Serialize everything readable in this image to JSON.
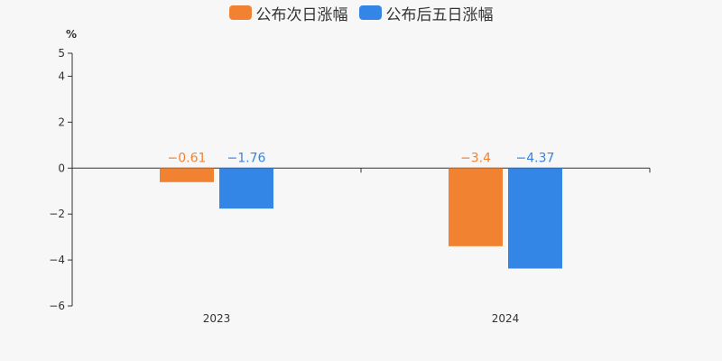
{
  "chart_data": {
    "type": "bar",
    "categories": [
      "2023",
      "2024"
    ],
    "series": [
      {
        "name": "公布次日涨幅",
        "values": [
          -0.61,
          -3.4
        ],
        "color": "#f08231",
        "labels": [
          "−0.61",
          "−3.4"
        ]
      },
      {
        "name": "公布后五日涨幅",
        "values": [
          -1.76,
          -4.37
        ],
        "color": "#3385e6",
        "labels": [
          "−1.76",
          "−4.37"
        ]
      }
    ],
    "ylabel": "%",
    "ylim": [
      -6,
      5
    ],
    "yticks": [
      5,
      4,
      2,
      0,
      -2,
      -4,
      -6
    ],
    "ytick_labels": [
      "5",
      "4",
      "2",
      "0",
      "−2",
      "−4",
      "−6"
    ],
    "legend_position": "top-center",
    "grid": false
  }
}
